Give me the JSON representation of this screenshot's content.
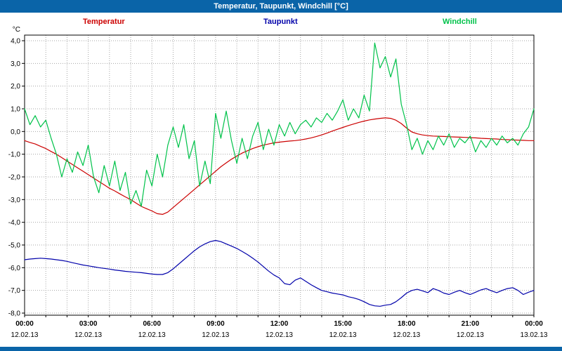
{
  "title_bar": {
    "title": "Temperatur, Taupunkt, Windchill [°C]"
  },
  "colors": {
    "title_bar_bg": "#0a64a8",
    "temperatur": "#cc0000",
    "taupunkt": "#0000aa",
    "windchill": "#00c24a",
    "grid": "#a6a6a6",
    "frame": "#000000",
    "axis_text": "#000000"
  },
  "chart_data": {
    "type": "line",
    "title": "Temperatur, Taupunkt, Windchill [°C]",
    "unit_label": "°C",
    "xlabel": "",
    "ylabel": "°C",
    "ylim": [
      -8,
      4
    ],
    "grid": true,
    "legend_position": "top",
    "x_start": 0,
    "x_step_hours": 0.25,
    "x_grid_every_hours": 1,
    "y_ticks": [
      {
        "value": 4,
        "label": "4,0"
      },
      {
        "value": 3,
        "label": "3,0"
      },
      {
        "value": 2,
        "label": "2,0"
      },
      {
        "value": 1,
        "label": "1,0"
      },
      {
        "value": 0,
        "label": "0,0"
      },
      {
        "value": -1,
        "label": "-1,0"
      },
      {
        "value": -2,
        "label": "-2,0"
      },
      {
        "value": -3,
        "label": "-3,0"
      },
      {
        "value": -4,
        "label": "-4,0"
      },
      {
        "value": -5,
        "label": "-5,0"
      },
      {
        "value": -6,
        "label": "-6,0"
      },
      {
        "value": -7,
        "label": "-7,0"
      },
      {
        "value": -8,
        "label": "-8,0"
      }
    ],
    "x_ticks": [
      {
        "hour": 0,
        "time": "00:00",
        "date": "12.02.13"
      },
      {
        "hour": 3,
        "time": "03:00",
        "date": "12.02.13"
      },
      {
        "hour": 6,
        "time": "06:00",
        "date": "12.02.13"
      },
      {
        "hour": 9,
        "time": "09:00",
        "date": "12.02.13"
      },
      {
        "hour": 12,
        "time": "12:00",
        "date": "12.02.13"
      },
      {
        "hour": 15,
        "time": "15:00",
        "date": "12.02.13"
      },
      {
        "hour": 18,
        "time": "18:00",
        "date": "12.02.13"
      },
      {
        "hour": 21,
        "time": "21:00",
        "date": "12.02.13"
      },
      {
        "hour": 24,
        "time": "00:00",
        "date": "13.02.13"
      }
    ],
    "series": [
      {
        "name": "Temperatur",
        "color_key": "temperatur",
        "values": [
          -0.4,
          -0.48,
          -0.55,
          -0.65,
          -0.75,
          -0.88,
          -1.0,
          -1.15,
          -1.3,
          -1.45,
          -1.6,
          -1.75,
          -1.9,
          -2.05,
          -2.2,
          -2.35,
          -2.5,
          -2.62,
          -2.75,
          -2.88,
          -3.0,
          -3.15,
          -3.3,
          -3.4,
          -3.5,
          -3.62,
          -3.65,
          -3.55,
          -3.35,
          -3.15,
          -2.95,
          -2.75,
          -2.55,
          -2.35,
          -2.15,
          -1.95,
          -1.75,
          -1.55,
          -1.38,
          -1.22,
          -1.08,
          -0.95,
          -0.85,
          -0.75,
          -0.67,
          -0.6,
          -0.55,
          -0.5,
          -0.47,
          -0.44,
          -0.42,
          -0.4,
          -0.37,
          -0.33,
          -0.28,
          -0.22,
          -0.15,
          -0.07,
          0.02,
          0.1,
          0.18,
          0.26,
          0.33,
          0.4,
          0.46,
          0.51,
          0.55,
          0.58,
          0.6,
          0.58,
          0.5,
          0.35,
          0.15,
          -0.02,
          -0.1,
          -0.15,
          -0.18,
          -0.2,
          -0.21,
          -0.22,
          -0.23,
          -0.24,
          -0.25,
          -0.26,
          -0.27,
          -0.28,
          -0.3,
          -0.31,
          -0.32,
          -0.33,
          -0.35,
          -0.36,
          -0.37,
          -0.38,
          -0.39,
          -0.4,
          -0.4
        ]
      },
      {
        "name": "Taupunkt",
        "color_key": "taupunkt",
        "values": [
          -5.65,
          -5.62,
          -5.6,
          -5.58,
          -5.6,
          -5.62,
          -5.65,
          -5.68,
          -5.72,
          -5.78,
          -5.83,
          -5.88,
          -5.92,
          -5.96,
          -6.0,
          -6.03,
          -6.06,
          -6.1,
          -6.13,
          -6.16,
          -6.18,
          -6.2,
          -6.22,
          -6.25,
          -6.28,
          -6.3,
          -6.3,
          -6.22,
          -6.05,
          -5.85,
          -5.65,
          -5.45,
          -5.25,
          -5.08,
          -4.95,
          -4.85,
          -4.8,
          -4.85,
          -4.95,
          -5.05,
          -5.15,
          -5.28,
          -5.42,
          -5.58,
          -5.75,
          -5.95,
          -6.15,
          -6.32,
          -6.45,
          -6.7,
          -6.75,
          -6.55,
          -6.45,
          -6.6,
          -6.75,
          -6.88,
          -7.0,
          -7.06,
          -7.12,
          -7.16,
          -7.2,
          -7.28,
          -7.33,
          -7.4,
          -7.5,
          -7.62,
          -7.68,
          -7.7,
          -7.65,
          -7.62,
          -7.5,
          -7.32,
          -7.12,
          -7.0,
          -6.95,
          -7.02,
          -7.1,
          -6.92,
          -7.0,
          -7.12,
          -7.18,
          -7.08,
          -7.0,
          -7.1,
          -7.18,
          -7.08,
          -6.98,
          -6.92,
          -7.02,
          -7.1,
          -7.0,
          -6.92,
          -6.88,
          -7.0,
          -7.18,
          -7.08,
          -7.0
        ]
      },
      {
        "name": "Windchill",
        "color_key": "windchill",
        "values": [
          1.0,
          0.3,
          0.7,
          0.2,
          0.5,
          -0.3,
          -1.0,
          -2.0,
          -1.2,
          -1.8,
          -0.9,
          -1.5,
          -0.6,
          -2.0,
          -2.7,
          -1.5,
          -2.4,
          -1.3,
          -2.6,
          -1.8,
          -3.2,
          -2.6,
          -3.3,
          -1.7,
          -2.4,
          -1.0,
          -2.0,
          -0.6,
          0.2,
          -0.7,
          0.3,
          -1.2,
          -0.4,
          -2.4,
          -1.3,
          -2.3,
          0.8,
          -0.3,
          0.9,
          -0.4,
          -1.4,
          -0.3,
          -1.2,
          -0.2,
          0.4,
          -0.8,
          0.1,
          -0.6,
          0.3,
          -0.2,
          0.4,
          -0.1,
          0.3,
          0.5,
          0.2,
          0.6,
          0.4,
          0.8,
          0.5,
          0.9,
          1.4,
          0.5,
          1.0,
          0.6,
          1.6,
          0.9,
          3.9,
          2.8,
          3.3,
          2.4,
          3.2,
          1.2,
          0.3,
          -0.8,
          -0.3,
          -1.0,
          -0.4,
          -0.8,
          -0.2,
          -0.6,
          -0.1,
          -0.7,
          -0.3,
          -0.5,
          -0.2,
          -0.9,
          -0.4,
          -0.7,
          -0.3,
          -0.6,
          -0.2,
          -0.5,
          -0.3,
          -0.6,
          -0.1,
          0.2,
          1.0
        ]
      }
    ]
  }
}
